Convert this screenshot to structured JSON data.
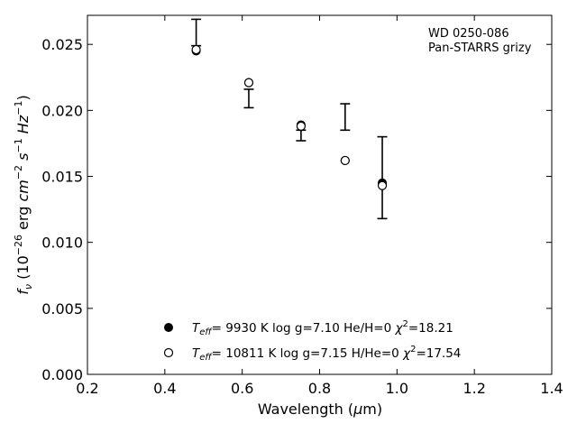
{
  "chart_data": {
    "type": "scatter",
    "xlabel": "Wavelength (μm)",
    "ylabel": "f_ν (10^−26 erg cm^−2 s^−1 Hz^−1)",
    "xlim": [
      0.2,
      1.4
    ],
    "ylim": [
      0.0,
      0.0272
    ],
    "xticks": [
      "0.2",
      "0.4",
      "0.6",
      "0.8",
      "1.0",
      "1.2",
      "1.4"
    ],
    "yticks": [
      "0.000",
      "0.005",
      "0.010",
      "0.015",
      "0.020",
      "0.025"
    ],
    "grid": false,
    "annotation": [
      "WD 0250-086",
      "Pan-STARRS grizy"
    ],
    "observed": {
      "x": [
        0.481,
        0.617,
        0.752,
        0.866,
        0.962
      ],
      "y": [
        0.0259,
        0.0209,
        0.0181,
        0.0195,
        0.0149
      ],
      "yerr": [
        0.001,
        0.0007,
        0.0004,
        0.001,
        0.0031
      ]
    },
    "series": [
      {
        "name": "T_eff=  9930 K  log g=7.10  He/H=0  χ²=18.21",
        "marker": "filled-circle",
        "x": [
          0.481,
          0.617,
          0.752,
          0.866,
          0.962
        ],
        "y": [
          0.0245,
          0.0221,
          0.0189,
          0.0162,
          0.0145
        ]
      },
      {
        "name": "T_eff= 10811 K  log g=7.15  H/He=0  χ²=17.54",
        "marker": "open-circle",
        "x": [
          0.481,
          0.617,
          0.752,
          0.866,
          0.962
        ],
        "y": [
          0.0246,
          0.0221,
          0.0188,
          0.0162,
          0.0143
        ]
      }
    ],
    "legend_position": "lower-center"
  }
}
